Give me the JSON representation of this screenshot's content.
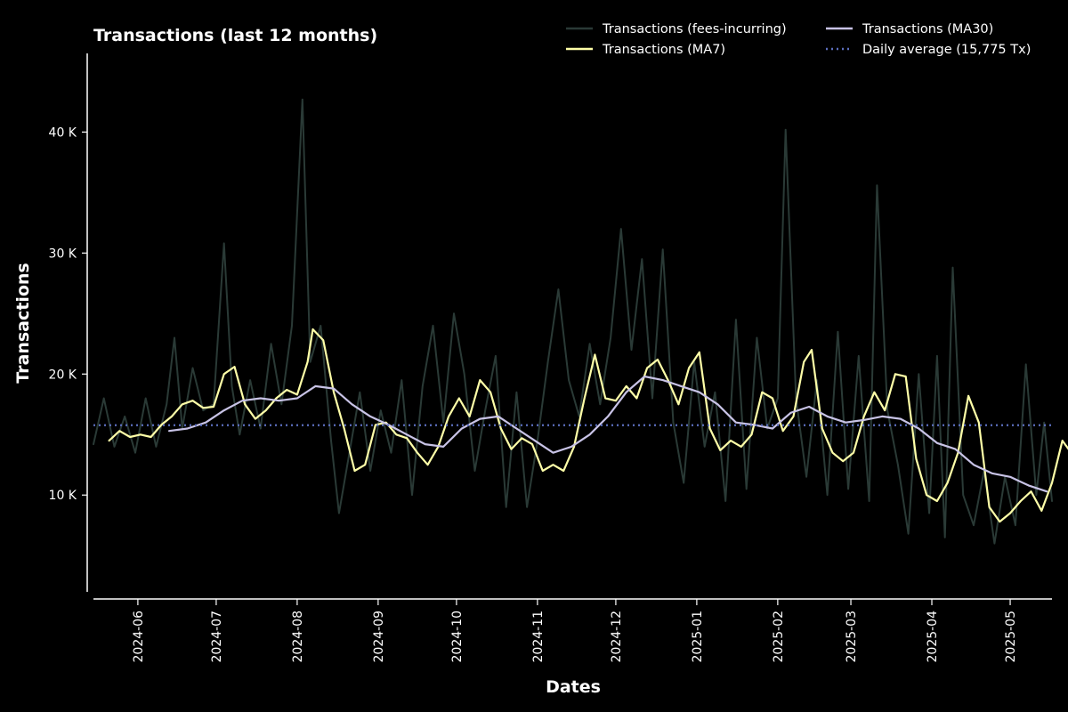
{
  "chart_data": {
    "type": "line",
    "title": "Transactions (last 12 months)",
    "xlabel": "Dates",
    "ylabel": "Transactions",
    "background": "#000000",
    "foreground": "#ffffff",
    "grid": false,
    "legend_position": "top-right",
    "x_range": [
      "2024-05-15",
      "2025-05-17"
    ],
    "ylim": [
      2000,
      46500
    ],
    "y_ticks": [
      {
        "value": 10000,
        "label": "10 K"
      },
      {
        "value": 20000,
        "label": "20 K"
      },
      {
        "value": 30000,
        "label": "30 K"
      },
      {
        "value": 40000,
        "label": "40 K"
      }
    ],
    "x_ticks": [
      {
        "date": "2024-06-01",
        "label": "2024-06"
      },
      {
        "date": "2024-07-01",
        "label": "2024-07"
      },
      {
        "date": "2024-08-01",
        "label": "2024-08"
      },
      {
        "date": "2024-09-01",
        "label": "2024-09"
      },
      {
        "date": "2024-10-01",
        "label": "2024-10"
      },
      {
        "date": "2024-11-01",
        "label": "2024-11"
      },
      {
        "date": "2024-12-01",
        "label": "2024-12"
      },
      {
        "date": "2025-01-01",
        "label": "2025-01"
      },
      {
        "date": "2025-02-01",
        "label": "2025-02"
      },
      {
        "date": "2025-03-01",
        "label": "2025-03"
      },
      {
        "date": "2025-04-01",
        "label": "2025-04"
      },
      {
        "date": "2025-05-01",
        "label": "2025-05"
      }
    ],
    "series": [
      {
        "name": "Transactions (fees-incurring)",
        "color": "#2a3a36",
        "style": "solid",
        "points": [
          [
            "2024-05-15",
            14200
          ],
          [
            "2024-05-19",
            18000
          ],
          [
            "2024-05-23",
            14000
          ],
          [
            "2024-05-27",
            16500
          ],
          [
            "2024-05-31",
            13500
          ],
          [
            "2024-06-04",
            18000
          ],
          [
            "2024-06-08",
            14000
          ],
          [
            "2024-06-12",
            17500
          ],
          [
            "2024-06-15",
            23000
          ],
          [
            "2024-06-18",
            15500
          ],
          [
            "2024-06-22",
            20500
          ],
          [
            "2024-06-26",
            17000
          ],
          [
            "2024-06-30",
            17500
          ],
          [
            "2024-07-04",
            30800
          ],
          [
            "2024-07-07",
            19000
          ],
          [
            "2024-07-10",
            15000
          ],
          [
            "2024-07-14",
            19500
          ],
          [
            "2024-07-18",
            15500
          ],
          [
            "2024-07-22",
            22500
          ],
          [
            "2024-07-26",
            17500
          ],
          [
            "2024-07-30",
            24000
          ],
          [
            "2024-08-03",
            42700
          ],
          [
            "2024-08-06",
            21000
          ],
          [
            "2024-08-10",
            24000
          ],
          [
            "2024-08-14",
            14500
          ],
          [
            "2024-08-17",
            8500
          ],
          [
            "2024-08-21",
            13500
          ],
          [
            "2024-08-25",
            18500
          ],
          [
            "2024-08-29",
            12000
          ],
          [
            "2024-09-02",
            17000
          ],
          [
            "2024-09-06",
            13500
          ],
          [
            "2024-09-10",
            19500
          ],
          [
            "2024-09-14",
            10000
          ],
          [
            "2024-09-18",
            19000
          ],
          [
            "2024-09-22",
            24000
          ],
          [
            "2024-09-26",
            16000
          ],
          [
            "2024-09-30",
            25000
          ],
          [
            "2024-10-04",
            20000
          ],
          [
            "2024-10-08",
            12000
          ],
          [
            "2024-10-12",
            17000
          ],
          [
            "2024-10-16",
            21500
          ],
          [
            "2024-10-20",
            9000
          ],
          [
            "2024-10-24",
            18500
          ],
          [
            "2024-10-28",
            9000
          ],
          [
            "2024-11-01",
            14500
          ],
          [
            "2024-11-05",
            21000
          ],
          [
            "2024-11-09",
            27000
          ],
          [
            "2024-11-13",
            19500
          ],
          [
            "2024-11-17",
            16500
          ],
          [
            "2024-11-21",
            22500
          ],
          [
            "2024-11-25",
            17500
          ],
          [
            "2024-11-29",
            23000
          ],
          [
            "2024-12-03",
            32000
          ],
          [
            "2024-12-07",
            22000
          ],
          [
            "2024-12-11",
            29500
          ],
          [
            "2024-12-15",
            18000
          ],
          [
            "2024-12-19",
            30300
          ],
          [
            "2024-12-23",
            16000
          ],
          [
            "2024-12-27",
            11000
          ],
          [
            "2024-12-31",
            21000
          ],
          [
            "2025-01-04",
            14000
          ],
          [
            "2025-01-08",
            18500
          ],
          [
            "2025-01-12",
            9500
          ],
          [
            "2025-01-16",
            24500
          ],
          [
            "2025-01-20",
            10500
          ],
          [
            "2025-01-24",
            23000
          ],
          [
            "2025-01-28",
            15500
          ],
          [
            "2025-02-01",
            18000
          ],
          [
            "2025-02-04",
            40200
          ],
          [
            "2025-02-08",
            18000
          ],
          [
            "2025-02-12",
            11500
          ],
          [
            "2025-02-16",
            19500
          ],
          [
            "2025-02-20",
            10000
          ],
          [
            "2025-02-24",
            23500
          ],
          [
            "2025-02-28",
            10500
          ],
          [
            "2025-03-04",
            21500
          ],
          [
            "2025-03-08",
            9500
          ],
          [
            "2025-03-11",
            35600
          ],
          [
            "2025-03-15",
            17000
          ],
          [
            "2025-03-19",
            12500
          ],
          [
            "2025-03-23",
            6800
          ],
          [
            "2025-03-27",
            20000
          ],
          [
            "2025-03-31",
            8500
          ],
          [
            "2025-04-03",
            21500
          ],
          [
            "2025-04-06",
            6500
          ],
          [
            "2025-04-09",
            28800
          ],
          [
            "2025-04-13",
            10000
          ],
          [
            "2025-04-17",
            7500
          ],
          [
            "2025-04-21",
            12000
          ],
          [
            "2025-04-25",
            6000
          ],
          [
            "2025-04-29",
            11500
          ],
          [
            "2025-05-03",
            7500
          ],
          [
            "2025-05-07",
            20800
          ],
          [
            "2025-05-11",
            10000
          ],
          [
            "2025-05-14",
            16000
          ],
          [
            "2025-05-17",
            9500
          ]
        ]
      },
      {
        "name": "Transactions (MA7)",
        "color": "#ffffa8",
        "style": "solid",
        "points": [
          [
            "2024-05-21",
            14500
          ],
          [
            "2024-05-25",
            15300
          ],
          [
            "2024-05-29",
            14800
          ],
          [
            "2024-06-02",
            15000
          ],
          [
            "2024-06-06",
            14800
          ],
          [
            "2024-06-10",
            15800
          ],
          [
            "2024-06-14",
            16500
          ],
          [
            "2024-06-18",
            17500
          ],
          [
            "2024-06-22",
            17800
          ],
          [
            "2024-06-26",
            17200
          ],
          [
            "2024-06-30",
            17300
          ],
          [
            "2024-07-04",
            20000
          ],
          [
            "2024-07-08",
            20600
          ],
          [
            "2024-07-12",
            17500
          ],
          [
            "2024-07-16",
            16300
          ],
          [
            "2024-07-20",
            17000
          ],
          [
            "2024-07-24",
            18000
          ],
          [
            "2024-07-28",
            18700
          ],
          [
            "2024-08-01",
            18300
          ],
          [
            "2024-08-05",
            21000
          ],
          [
            "2024-08-07",
            23700
          ],
          [
            "2024-08-11",
            22800
          ],
          [
            "2024-08-15",
            18500
          ],
          [
            "2024-08-19",
            15500
          ],
          [
            "2024-08-23",
            12000
          ],
          [
            "2024-08-27",
            12500
          ],
          [
            "2024-08-31",
            15800
          ],
          [
            "2024-09-04",
            16000
          ],
          [
            "2024-09-08",
            15000
          ],
          [
            "2024-09-12",
            14700
          ],
          [
            "2024-09-16",
            13500
          ],
          [
            "2024-09-20",
            12500
          ],
          [
            "2024-09-24",
            14000
          ],
          [
            "2024-09-28",
            16500
          ],
          [
            "2024-10-02",
            18000
          ],
          [
            "2024-10-06",
            16500
          ],
          [
            "2024-10-10",
            19500
          ],
          [
            "2024-10-14",
            18500
          ],
          [
            "2024-10-18",
            15500
          ],
          [
            "2024-10-22",
            13800
          ],
          [
            "2024-10-26",
            14700
          ],
          [
            "2024-10-30",
            14200
          ],
          [
            "2024-11-03",
            12000
          ],
          [
            "2024-11-07",
            12500
          ],
          [
            "2024-11-11",
            12000
          ],
          [
            "2024-11-15",
            14000
          ],
          [
            "2024-11-19",
            18000
          ],
          [
            "2024-11-23",
            21600
          ],
          [
            "2024-11-27",
            18000
          ],
          [
            "2024-12-01",
            17800
          ],
          [
            "2024-12-05",
            19000
          ],
          [
            "2024-12-09",
            18000
          ],
          [
            "2024-12-13",
            20500
          ],
          [
            "2024-12-17",
            21200
          ],
          [
            "2024-12-21",
            19500
          ],
          [
            "2024-12-25",
            17500
          ],
          [
            "2024-12-29",
            20500
          ],
          [
            "2025-01-02",
            21800
          ],
          [
            "2025-01-06",
            15500
          ],
          [
            "2025-01-10",
            13700
          ],
          [
            "2025-01-14",
            14500
          ],
          [
            "2025-01-18",
            14000
          ],
          [
            "2025-01-22",
            15000
          ],
          [
            "2025-01-26",
            18500
          ],
          [
            "2025-01-30",
            18000
          ],
          [
            "2025-02-03",
            15300
          ],
          [
            "2025-02-07",
            16500
          ],
          [
            "2025-02-11",
            21000
          ],
          [
            "2025-02-14",
            22000
          ],
          [
            "2025-02-18",
            15500
          ],
          [
            "2025-02-22",
            13500
          ],
          [
            "2025-02-26",
            12800
          ],
          [
            "2025-03-02",
            13500
          ],
          [
            "2025-03-06",
            16500
          ],
          [
            "2025-03-10",
            18500
          ],
          [
            "2025-03-14",
            17000
          ],
          [
            "2025-03-18",
            20000
          ],
          [
            "2025-03-22",
            19800
          ],
          [
            "2025-03-26",
            13000
          ],
          [
            "2025-03-30",
            10000
          ],
          [
            "2025-04-03",
            9500
          ],
          [
            "2025-04-07",
            11000
          ],
          [
            "2025-04-11",
            13500
          ],
          [
            "2025-04-15",
            18200
          ],
          [
            "2025-04-19",
            16000
          ],
          [
            "2025-04-23",
            9000
          ],
          [
            "2025-04-27",
            7800
          ],
          [
            "2025-05-01",
            8500
          ],
          [
            "2025-05-05",
            9500
          ],
          [
            "2025-05-09",
            10300
          ],
          [
            "2025-05-13",
            8700
          ],
          [
            "2025-05-17",
            11000
          ],
          [
            "2025-05-21",
            14500
          ],
          [
            "2025-05-25",
            13300
          ]
        ]
      },
      {
        "name": "Transactions (MA30)",
        "color": "#c8c3e6",
        "style": "solid",
        "points": [
          [
            "2024-06-13",
            15300
          ],
          [
            "2024-06-20",
            15500
          ],
          [
            "2024-06-27",
            16000
          ],
          [
            "2024-07-04",
            17000
          ],
          [
            "2024-07-11",
            17800
          ],
          [
            "2024-07-18",
            18000
          ],
          [
            "2024-07-25",
            17800
          ],
          [
            "2024-08-01",
            18000
          ],
          [
            "2024-08-08",
            19000
          ],
          [
            "2024-08-15",
            18800
          ],
          [
            "2024-08-22",
            17500
          ],
          [
            "2024-08-29",
            16500
          ],
          [
            "2024-09-05",
            15800
          ],
          [
            "2024-09-12",
            15000
          ],
          [
            "2024-09-19",
            14200
          ],
          [
            "2024-09-26",
            14000
          ],
          [
            "2024-10-03",
            15500
          ],
          [
            "2024-10-10",
            16300
          ],
          [
            "2024-10-17",
            16500
          ],
          [
            "2024-10-24",
            15500
          ],
          [
            "2024-10-31",
            14500
          ],
          [
            "2024-11-07",
            13500
          ],
          [
            "2024-11-14",
            14000
          ],
          [
            "2024-11-21",
            15000
          ],
          [
            "2024-11-28",
            16500
          ],
          [
            "2024-12-05",
            18500
          ],
          [
            "2024-12-12",
            19800
          ],
          [
            "2024-12-19",
            19500
          ],
          [
            "2024-12-26",
            19000
          ],
          [
            "2025-01-02",
            18500
          ],
          [
            "2025-01-09",
            17500
          ],
          [
            "2025-01-16",
            16000
          ],
          [
            "2025-01-23",
            15800
          ],
          [
            "2025-01-30",
            15500
          ],
          [
            "2025-02-06",
            16800
          ],
          [
            "2025-02-13",
            17300
          ],
          [
            "2025-02-20",
            16500
          ],
          [
            "2025-02-27",
            16000
          ],
          [
            "2025-03-06",
            16200
          ],
          [
            "2025-03-13",
            16500
          ],
          [
            "2025-03-20",
            16300
          ],
          [
            "2025-03-27",
            15500
          ],
          [
            "2025-04-03",
            14300
          ],
          [
            "2025-04-10",
            13800
          ],
          [
            "2025-04-17",
            12500
          ],
          [
            "2025-04-24",
            11800
          ],
          [
            "2025-05-01",
            11500
          ],
          [
            "2025-05-08",
            10800
          ],
          [
            "2025-05-15",
            10300
          ]
        ]
      },
      {
        "name": "Daily average (15,775 Tx)",
        "color": "#5c6fbf",
        "style": "dotted",
        "constant": 15775
      }
    ]
  }
}
